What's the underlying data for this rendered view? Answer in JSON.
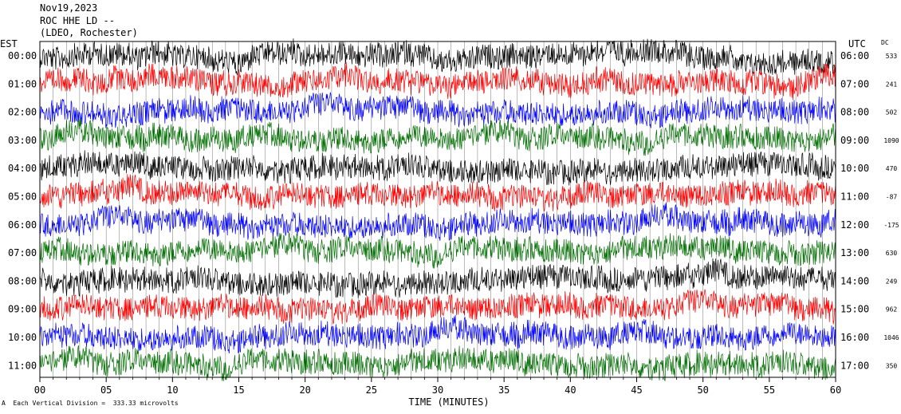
{
  "header": {
    "date": "Nov19,2023",
    "station": "ROC HHE LD --",
    "network": "(LDEO, Rochester)"
  },
  "left_axis_title": "EST",
  "right_axis_title": "UTC",
  "dc_title": "DC",
  "footer_note": "Each Vertical Division =  333.33 microvolts",
  "footer_mark": "A",
  "chart_data": {
    "type": "line",
    "title": "",
    "xlabel": "TIME (MINUTES)",
    "xlim": [
      0,
      60
    ],
    "x_ticks": [
      "00",
      "05",
      "10",
      "15",
      "20",
      "25",
      "30",
      "35",
      "40",
      "45",
      "50",
      "55",
      "60"
    ],
    "grid": true,
    "series_colors": [
      "#000000",
      "#ff0000",
      "#0000ff",
      "#007000"
    ],
    "rows": [
      {
        "est": "00:00",
        "utc": "06:00",
        "dc": "533",
        "color": "#000000"
      },
      {
        "est": "01:00",
        "utc": "07:00",
        "dc": "241",
        "color": "#ff0000"
      },
      {
        "est": "02:00",
        "utc": "08:00",
        "dc": "502",
        "color": "#0000ff"
      },
      {
        "est": "03:00",
        "utc": "09:00",
        "dc": "1090",
        "color": "#007000"
      },
      {
        "est": "04:00",
        "utc": "10:00",
        "dc": "470",
        "color": "#000000"
      },
      {
        "est": "05:00",
        "utc": "11:00",
        "dc": "-87",
        "color": "#ff0000"
      },
      {
        "est": "06:00",
        "utc": "12:00",
        "dc": "-175",
        "color": "#0000ff"
      },
      {
        "est": "07:00",
        "utc": "13:00",
        "dc": "630",
        "color": "#007000"
      },
      {
        "est": "08:00",
        "utc": "14:00",
        "dc": "249",
        "color": "#000000"
      },
      {
        "est": "09:00",
        "utc": "15:00",
        "dc": "962",
        "color": "#ff0000"
      },
      {
        "est": "10:00",
        "utc": "16:00",
        "dc": "1046",
        "color": "#0000ff"
      },
      {
        "est": "11:00",
        "utc": "17:00",
        "dc": "350",
        "color": "#007000"
      }
    ]
  }
}
